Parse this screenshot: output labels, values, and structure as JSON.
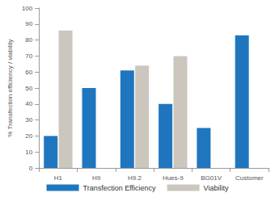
{
  "chart_data": {
    "type": "bar",
    "y_label": "% Transfection efficiency / viability",
    "categories": [
      "H1",
      "H9",
      "H9.2",
      "Hues-9",
      "BG01V",
      "Customer"
    ],
    "series": [
      {
        "name": "Transfection Efficiency",
        "color": "#1f76bf",
        "values": [
          20,
          50,
          61,
          40,
          25,
          83
        ]
      },
      {
        "name": "Viability",
        "color": "#cbc7be",
        "values": [
          86,
          null,
          64,
          70,
          null,
          null
        ]
      }
    ],
    "ylim": [
      0,
      100
    ],
    "yticks": [
      0,
      10,
      20,
      30,
      40,
      50,
      60,
      70,
      80,
      90,
      100
    ],
    "grid": false,
    "legend": "bottom"
  }
}
